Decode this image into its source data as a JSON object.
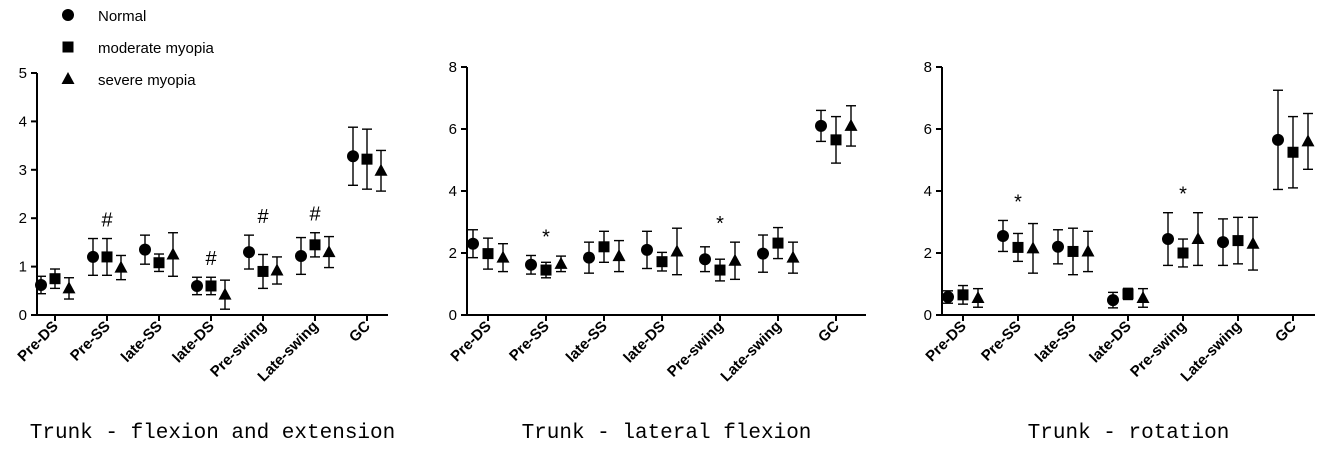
{
  "chart_data": [
    {
      "type": "errorbar",
      "title": "Trunk - flexion and extension",
      "categories": [
        "Pre-DS",
        "Pre-SS",
        "late-SS",
        "late-DS",
        "Pre-swing",
        "Late-swing",
        "GC"
      ],
      "ylim": [
        0,
        5
      ],
      "yticks": [
        0,
        1,
        2,
        3,
        4,
        5
      ],
      "legend": "top-left",
      "series": [
        {
          "name": "Normal",
          "marker": "circle",
          "color": "#000000",
          "values": [
            0.62,
            1.2,
            1.35,
            0.6,
            1.3,
            1.22,
            3.28
          ],
          "errors": [
            0.18,
            0.38,
            0.3,
            0.18,
            0.35,
            0.38,
            0.6
          ]
        },
        {
          "name": "moderate myopia",
          "marker": "square",
          "color": "#000000",
          "values": [
            0.75,
            1.2,
            1.08,
            0.6,
            0.9,
            1.45,
            3.22
          ],
          "errors": [
            0.2,
            0.38,
            0.18,
            0.18,
            0.35,
            0.25,
            0.62
          ]
        },
        {
          "name": "severe myopia",
          "marker": "triangle",
          "color": "#000000",
          "values": [
            0.55,
            0.98,
            1.25,
            0.42,
            0.92,
            1.3,
            2.98
          ],
          "errors": [
            0.22,
            0.25,
            0.45,
            0.3,
            0.28,
            0.32,
            0.42
          ]
        }
      ],
      "annotations": [
        {
          "text": "#",
          "x": "Pre-SS"
        },
        {
          "text": "#",
          "x": "late-DS"
        },
        {
          "text": "#",
          "x": "Pre-swing"
        },
        {
          "text": "#",
          "x": "Late-swing"
        }
      ]
    },
    {
      "type": "errorbar",
      "title": "Trunk - lateral flexion",
      "categories": [
        "Pre-DS",
        "Pre-SS",
        "late-SS",
        "late-DS",
        "Pre-swing",
        "Late-swing",
        "GC"
      ],
      "ylim": [
        0,
        8
      ],
      "yticks": [
        0,
        2,
        4,
        6,
        8
      ],
      "series": [
        {
          "marker": "circle",
          "color": "#000000",
          "values": [
            2.3,
            1.62,
            1.85,
            2.1,
            1.8,
            1.98,
            6.1
          ],
          "errors": [
            0.45,
            0.3,
            0.5,
            0.6,
            0.4,
            0.6,
            0.5
          ]
        },
        {
          "marker": "square",
          "color": "#000000",
          "values": [
            1.98,
            1.45,
            2.2,
            1.72,
            1.45,
            2.32,
            5.65
          ],
          "errors": [
            0.5,
            0.25,
            0.5,
            0.3,
            0.35,
            0.5,
            0.75
          ]
        },
        {
          "marker": "triangle",
          "color": "#000000",
          "values": [
            1.85,
            1.65,
            1.9,
            2.05,
            1.75,
            1.85,
            6.1
          ],
          "errors": [
            0.45,
            0.25,
            0.5,
            0.75,
            0.6,
            0.5,
            0.65
          ]
        }
      ],
      "annotations": [
        {
          "text": "*",
          "x": "Pre-SS"
        },
        {
          "text": "*",
          "x": "Pre-swing"
        }
      ]
    },
    {
      "type": "errorbar",
      "title": "Trunk - rotation",
      "categories": [
        "Pre-DS",
        "Pre-SS",
        "late-SS",
        "late-DS",
        "Pre-swing",
        "Late-swing",
        "GC"
      ],
      "ylim": [
        0,
        8
      ],
      "yticks": [
        0,
        2,
        4,
        6,
        8
      ],
      "series": [
        {
          "marker": "circle",
          "color": "#000000",
          "values": [
            0.58,
            2.55,
            2.2,
            0.48,
            2.45,
            2.35,
            5.65
          ],
          "errors": [
            0.2,
            0.5,
            0.55,
            0.25,
            0.85,
            0.75,
            1.6
          ]
        },
        {
          "marker": "square",
          "color": "#000000",
          "values": [
            0.65,
            2.18,
            2.05,
            0.68,
            2.0,
            2.4,
            5.25
          ],
          "errors": [
            0.3,
            0.45,
            0.75,
            0.18,
            0.45,
            0.75,
            1.15
          ]
        },
        {
          "marker": "triangle",
          "color": "#000000",
          "values": [
            0.55,
            2.15,
            2.05,
            0.55,
            2.45,
            2.3,
            5.6
          ],
          "errors": [
            0.3,
            0.8,
            0.65,
            0.3,
            0.85,
            0.85,
            0.9
          ]
        }
      ],
      "annotations": [
        {
          "text": "*",
          "x": "Pre-SS"
        },
        {
          "text": "*",
          "x": "Pre-swing"
        }
      ]
    }
  ]
}
